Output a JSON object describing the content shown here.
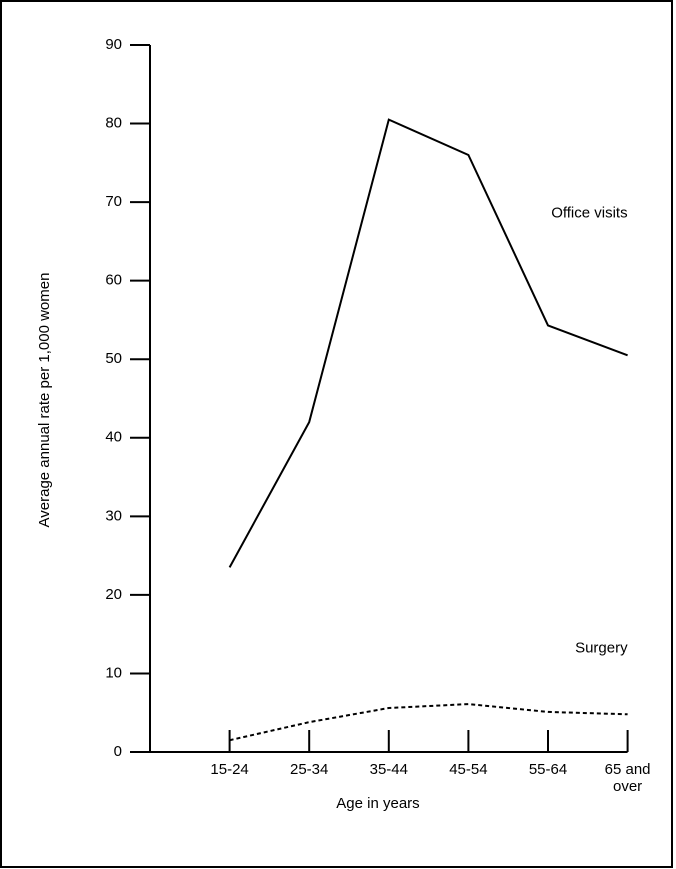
{
  "chart_data": {
    "type": "line",
    "xlabel": "Age in years",
    "ylabel": "Average annual rate per 1,000 women",
    "categories": [
      "15-24",
      "25-34",
      "35-44",
      "45-54",
      "55-64",
      "65 and over"
    ],
    "series": [
      {
        "name": "Office visits",
        "color": "#000000",
        "dash": false,
        "values": [
          23.5,
          42,
          80.5,
          76,
          54.3,
          50.5
        ]
      },
      {
        "name": "Surgery",
        "color": "#000000",
        "dash": true,
        "values": [
          1.5,
          3.8,
          5.6,
          6.1,
          5.1,
          4.8
        ]
      }
    ],
    "ylim": [
      0,
      90
    ],
    "yticks": [
      0,
      10,
      20,
      30,
      40,
      50,
      60,
      70,
      80,
      90
    ]
  }
}
